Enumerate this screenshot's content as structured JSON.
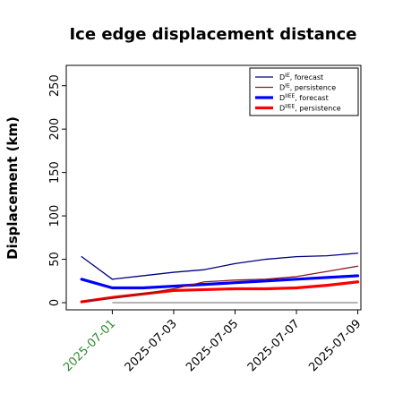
{
  "chart_data": {
    "type": "line",
    "title": "Ice edge displacement distance",
    "xlabel": "",
    "ylabel": "Displacement (km)",
    "ylim": [
      0,
      260
    ],
    "yticks": [
      0,
      50,
      100,
      150,
      200,
      250
    ],
    "x": [
      "2025-07-01",
      "2025-07-02",
      "2025-07-03",
      "2025-07-04",
      "2025-07-05",
      "2025-07-06",
      "2025-07-07",
      "2025-07-08",
      "2025-07-09"
    ],
    "x_plot_start": "2025-06-30",
    "x_plot_end": "2025-07-09",
    "x_tick_labels": [
      "2025-07-01",
      "2025-07-03",
      "2025-07-05",
      "2025-07-07",
      "2025-07-09"
    ],
    "x_tick_colors": [
      "#2e8b2e",
      "#000000",
      "#000000",
      "#000000",
      "#000000"
    ],
    "grid": false,
    "legend_position": "top-right",
    "series": [
      {
        "name_parts": [
          "D",
          "IE",
          ", forecast"
        ],
        "color": "#000080",
        "width": "thin",
        "x": [
          "2025-06-30",
          "2025-07-01",
          "2025-07-02",
          "2025-07-03",
          "2025-07-04",
          "2025-07-05",
          "2025-07-06",
          "2025-07-07",
          "2025-07-08",
          "2025-07-09"
        ],
        "values": [
          53,
          27,
          31,
          35,
          38,
          45,
          50,
          53,
          54,
          57
        ]
      },
      {
        "name_parts": [
          "D",
          "IE",
          ", persistence"
        ],
        "color": "#8b1a1a",
        "width": "thin",
        "x": [
          "2025-06-30",
          "2025-07-01",
          "2025-07-02",
          "2025-07-03",
          "2025-07-04",
          "2025-07-05",
          "2025-07-06",
          "2025-07-07",
          "2025-07-08",
          "2025-07-09"
        ],
        "values": [
          1,
          5,
          10,
          16,
          24,
          26,
          27,
          30,
          36,
          42
        ]
      },
      {
        "name_parts": [
          "D",
          "IIEE",
          ", forecast"
        ],
        "color": "#0000ff",
        "width": "thick",
        "x": [
          "2025-06-30",
          "2025-07-01",
          "2025-07-02",
          "2025-07-03",
          "2025-07-04",
          "2025-07-05",
          "2025-07-06",
          "2025-07-07",
          "2025-07-08",
          "2025-07-09"
        ],
        "values": [
          27,
          17,
          17,
          19,
          21,
          23,
          25,
          27,
          29,
          31
        ]
      },
      {
        "name_parts": [
          "D",
          "IIEE",
          ", persistence"
        ],
        "color": "#ff0000",
        "width": "thick",
        "x": [
          "2025-06-30",
          "2025-07-01",
          "2025-07-02",
          "2025-07-03",
          "2025-07-04",
          "2025-07-05",
          "2025-07-06",
          "2025-07-07",
          "2025-07-08",
          "2025-07-09"
        ],
        "values": [
          1,
          6,
          10,
          14,
          15,
          16,
          16,
          17,
          20,
          24
        ]
      }
    ],
    "zero_line": {
      "value": 0,
      "color": "#888888"
    }
  }
}
